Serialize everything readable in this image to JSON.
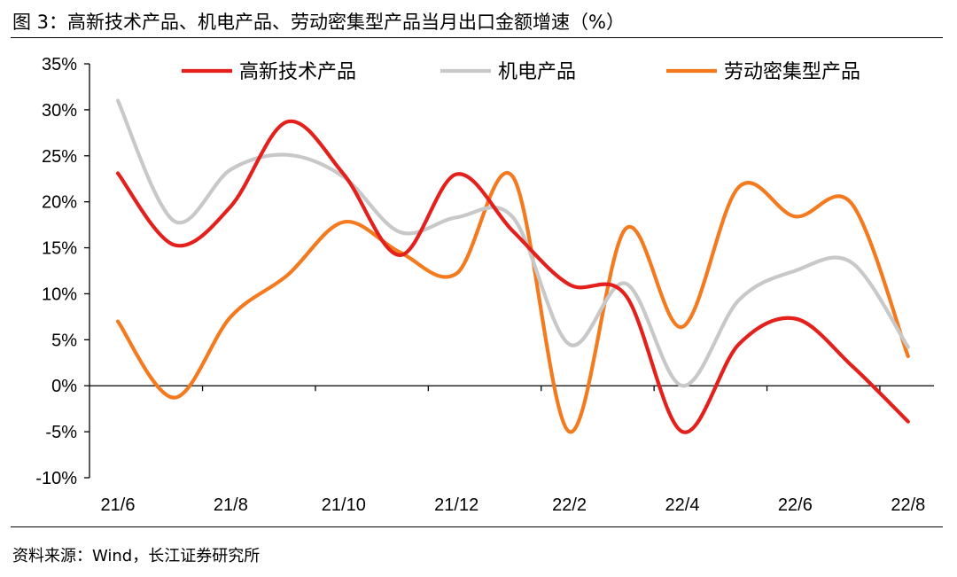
{
  "figure": {
    "title": "图 3：高新技术产品、机电产品、劳动密集型产品当月出口金额增速（%）",
    "source": "资料来源：Wind，长江证券研究所"
  },
  "chart_data": {
    "type": "line",
    "x": [
      "21/6",
      "21/7",
      "21/8",
      "21/9",
      "21/10",
      "21/11",
      "21/12",
      "22/1",
      "22/2",
      "22/3",
      "22/4",
      "22/5",
      "22/6",
      "22/7",
      "22/8"
    ],
    "x_tick_labels": [
      "21/6",
      "21/8",
      "21/10",
      "21/12",
      "22/2",
      "22/4",
      "22/6",
      "22/8"
    ],
    "y_tick_labels": [
      "35%",
      "30%",
      "25%",
      "20%",
      "15%",
      "10%",
      "5%",
      "0%",
      "-5%",
      "-10%"
    ],
    "ylim": [
      -10,
      35
    ],
    "y_ticks": [
      35,
      30,
      25,
      20,
      15,
      10,
      5,
      0,
      -5,
      -10
    ],
    "smooth": true,
    "legend_position": "top",
    "series": [
      {
        "name": "高新技术产品",
        "color": "#e3201b",
        "values": [
          23.1,
          15.3,
          19.5,
          28.7,
          23.0,
          14.2,
          23.0,
          16.8,
          11.0,
          9.8,
          -5.0,
          4.5,
          7.3,
          2.2,
          -3.9
        ]
      },
      {
        "name": "机电产品",
        "color": "#c8c8c8",
        "values": [
          31.0,
          17.9,
          23.5,
          25.1,
          22.7,
          16.7,
          18.3,
          18.3,
          4.5,
          11.1,
          0.0,
          9.3,
          12.5,
          13.4,
          4.2
        ]
      },
      {
        "name": "劳动密集型产品",
        "color": "#f47a1f",
        "values": [
          7.0,
          -1.3,
          7.5,
          12.0,
          17.8,
          14.5,
          12.2,
          22.7,
          -5.0,
          17.1,
          6.4,
          21.6,
          18.4,
          19.8,
          3.2
        ]
      }
    ]
  }
}
